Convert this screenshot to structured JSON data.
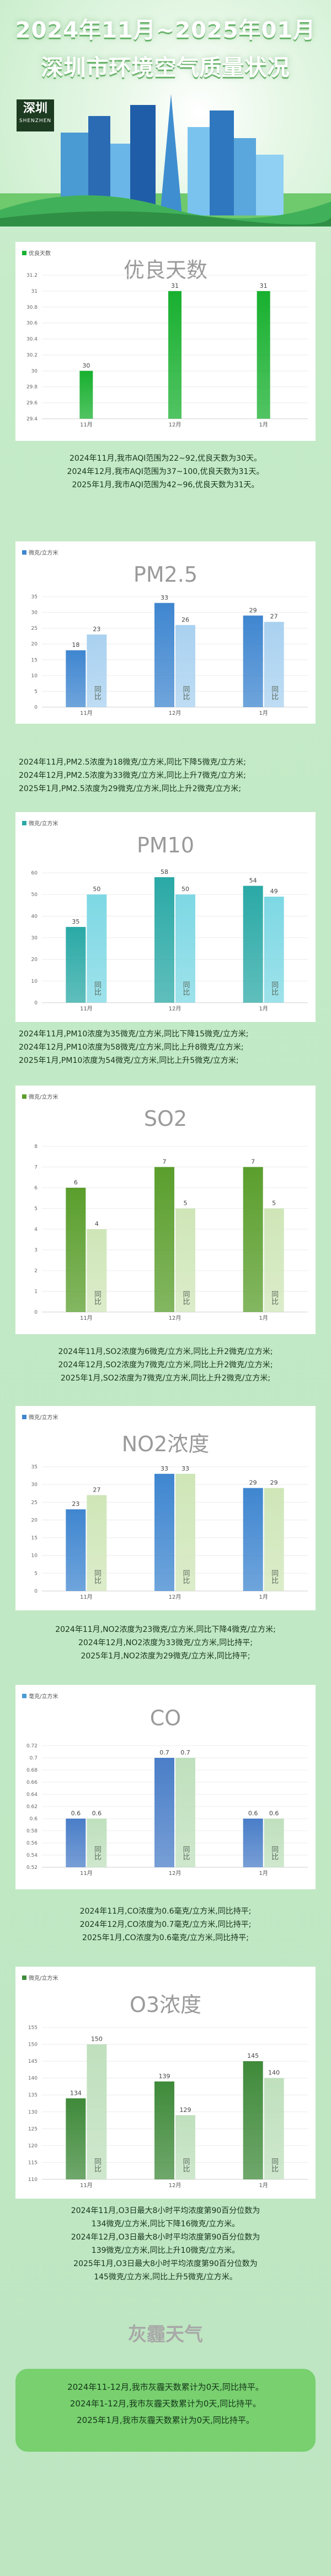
{
  "header": {
    "title_line1": "2024年11月~2025年01月",
    "title_line2": "深圳市环境空气质量状况",
    "city_cn": "深圳",
    "city_en": "SHENZHEN"
  },
  "colors": {
    "green_dark": "#18b02f",
    "green_light": "#7fe07a",
    "blue_dark": "#3f86d0",
    "blue_light": "#a9d1f0",
    "teal_dark": "#2aa9a6",
    "teal_light": "#7dd8e4",
    "olive_dark": "#5a9e2c",
    "olive_light": "#cfe6b8",
    "ocean_dark": "#4a7ec8",
    "ocean_light": "#bfe0bd",
    "haze_bg": "#78d06f"
  },
  "compare_label": "同比",
  "sections": [
    {
      "key": "aqi",
      "title": "优良天数",
      "legend": "优良天数",
      "notes": [
        "2024年11月,我市AQI范围为22~92,优良天数为30天。",
        "2024年12月,我市AQI范围为37~100,优良天数为31天。",
        "2025年1月,我市AQI范围为42~96,优良天数为31天。"
      ]
    },
    {
      "key": "pm25",
      "title": "PM2.5",
      "legend": "微克/立方米",
      "notes": [
        "2024年11月,PM2.5浓度为18微克/立方米,同比下降5微克/立方米;",
        "2024年12月,PM2.5浓度为33微克/立方米,同比上升7微克/立方米;",
        "2025年1月,PM2.5浓度为29微克/立方米,同比上升2微克/立方米;"
      ]
    },
    {
      "key": "pm10",
      "title": "PM10",
      "legend": "微克/立方米",
      "notes": [
        "2024年11月,PM10浓度为35微克/立方米,同比下降15微克/立方米;",
        "2024年12月,PM10浓度为58微克/立方米,同比上升8微克/立方米;",
        "2025年1月,PM10浓度为54微克/立方米,同比上升5微克/立方米;"
      ]
    },
    {
      "key": "so2",
      "title": "SO2",
      "legend": "微克/立方米",
      "notes": [
        "2024年11月,SO2浓度为6微克/立方米,同比上升2微克/立方米;",
        "2024年12月,SO2浓度为7微克/立方米,同比上升2微克/立方米;",
        "2025年1月,SO2浓度为7微克/立方米,同比上升2微克/立方米;"
      ]
    },
    {
      "key": "no2",
      "title": "NO2浓度",
      "legend": "微克/立方米",
      "notes": [
        "2024年11月,NO2浓度为23微克/立方米,同比下降4微克/立方米;",
        "2024年12月,NO2浓度为33微克/立方米,同比持平;",
        "2025年1月,NO2浓度为29微克/立方米,同比持平;"
      ]
    },
    {
      "key": "co",
      "title": "CO",
      "legend": "毫克/立方米",
      "notes": [
        "2024年11月,CO浓度为0.6毫克/立方米,同比持平;",
        "2024年12月,CO浓度为0.7毫克/立方米,同比持平;",
        "2025年1月,CO浓度为0.6毫克/立方米,同比持平;"
      ]
    },
    {
      "key": "o3",
      "title": "O3浓度",
      "legend": "微克/立方米",
      "notes": [
        "2024年11月,O3日最大8小时平均浓度第90百分位数为",
        "134微克/立方米,同比下降16微克/立方米。",
        "2024年12月,O3日最大8小时平均浓度第90百分位数为",
        "139微克/立方米,同比上升10微克/立方米。",
        "2025年1月,O3日最大8小时平均浓度第90百分位数为",
        "145微克/立方米,同比上升5微克/立方米。"
      ]
    }
  ],
  "haze": {
    "title": "灰霾天气",
    "notes": [
      "2024年11-12月,我市灰霾天数累计为0天,同比持平。",
      "2024年1-12月,我市灰霾天数累计为0天,同比持平。",
      "2025年1月,我市灰霾天数累计为0天,同比持平。"
    ]
  },
  "chart_data": [
    {
      "id": "aqi",
      "type": "bar",
      "categories": [
        "11月",
        "12月",
        "1月"
      ],
      "series": [
        {
          "name": "优良天数",
          "values": [
            30,
            31,
            31
          ]
        }
      ],
      "yticks": [
        "29.4",
        "29.6",
        "29.8",
        "30",
        "30.2",
        "30.4",
        "30.6",
        "30.8",
        "31",
        "31.2"
      ],
      "ylim": [
        29.4,
        31.2
      ]
    },
    {
      "id": "pm25",
      "type": "bar",
      "categories": [
        "11月",
        "12月",
        "1月"
      ],
      "series": [
        {
          "name": "当月",
          "values": [
            18,
            33,
            29
          ]
        },
        {
          "name": "同比",
          "values": [
            23,
            26,
            27
          ]
        }
      ],
      "yticks": [
        "0",
        "5",
        "10",
        "15",
        "20",
        "25",
        "30",
        "35"
      ],
      "ylim": [
        0,
        35
      ]
    },
    {
      "id": "pm10",
      "type": "bar",
      "categories": [
        "11月",
        "12月",
        "1月"
      ],
      "series": [
        {
          "name": "当月",
          "values": [
            35,
            58,
            54
          ]
        },
        {
          "name": "同比",
          "values": [
            50,
            50,
            49
          ]
        }
      ],
      "yticks": [
        "0",
        "10",
        "20",
        "30",
        "40",
        "50",
        "60"
      ],
      "ylim": [
        0,
        60
      ]
    },
    {
      "id": "so2",
      "type": "bar",
      "categories": [
        "11月",
        "12月",
        "1月"
      ],
      "series": [
        {
          "name": "当月",
          "values": [
            6,
            7,
            7
          ]
        },
        {
          "name": "同比",
          "values": [
            4,
            5,
            5
          ]
        }
      ],
      "yticks": [
        "0",
        "1",
        "2",
        "3",
        "4",
        "5",
        "6",
        "7",
        "8"
      ],
      "ylim": [
        0,
        8
      ]
    },
    {
      "id": "no2",
      "type": "bar",
      "categories": [
        "11月",
        "12月",
        "1月"
      ],
      "series": [
        {
          "name": "当月",
          "values": [
            23,
            33,
            29
          ]
        },
        {
          "name": "同比",
          "values": [
            27,
            33,
            29
          ]
        }
      ],
      "yticks": [
        "0",
        "5",
        "10",
        "15",
        "20",
        "25",
        "30",
        "35"
      ],
      "ylim": [
        0,
        35
      ]
    },
    {
      "id": "co",
      "type": "bar",
      "categories": [
        "11月",
        "12月",
        "1月"
      ],
      "series": [
        {
          "name": "当月",
          "values": [
            0.6,
            0.7,
            0.6
          ]
        },
        {
          "name": "同比",
          "values": [
            0.6,
            0.7,
            0.6
          ]
        }
      ],
      "yticks": [
        "0.52",
        "0.54",
        "0.56",
        "0.58",
        "0.6",
        "0.62",
        "0.64",
        "0.66",
        "0.68",
        "0.7",
        "0.72"
      ],
      "ylim": [
        0.52,
        0.72
      ]
    },
    {
      "id": "o3",
      "type": "bar",
      "categories": [
        "11月",
        "12月",
        "1月"
      ],
      "series": [
        {
          "name": "当月",
          "values": [
            134,
            139,
            145
          ]
        },
        {
          "name": "同比",
          "values": [
            150,
            129,
            140
          ]
        }
      ],
      "yticks": [
        "110",
        "115",
        "120",
        "125",
        "130",
        "135",
        "140",
        "145",
        "150",
        "155"
      ],
      "ylim": [
        110,
        155
      ]
    }
  ]
}
